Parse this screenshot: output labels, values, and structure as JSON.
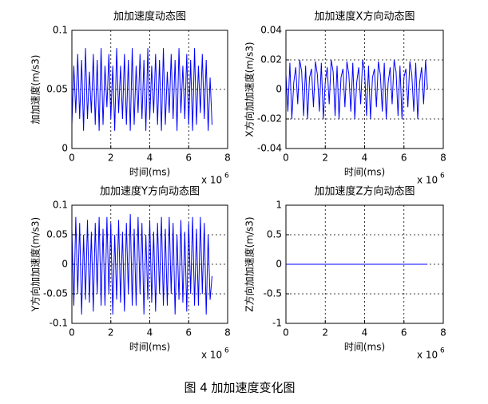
{
  "chart_data": [
    {
      "type": "line",
      "title": "加加速度动态图",
      "xlabel": "时间(ms)",
      "ylabel": "加加速度(m/s3)",
      "x_offset_text": "x 10",
      "x_offset_exponent": "6",
      "color": "#0000ff",
      "grid": true,
      "xlim": [
        0,
        8
      ],
      "xticks": [
        0,
        2,
        4,
        6,
        8
      ],
      "ylim": [
        0,
        0.1
      ],
      "yticks": [
        0,
        0.05,
        0.1
      ],
      "x": [
        0,
        0.1,
        0.2,
        0.3,
        0.4,
        0.5,
        0.6,
        0.7,
        0.8,
        0.9,
        1,
        1.1,
        1.2,
        1.3,
        1.4,
        1.5,
        1.6,
        1.7,
        1.8,
        1.9,
        2,
        2.1,
        2.2,
        2.3,
        2.4,
        2.5,
        2.6,
        2.7,
        2.8,
        2.9,
        3,
        3.1,
        3.2,
        3.3,
        3.4,
        3.5,
        3.6,
        3.7,
        3.8,
        3.9,
        4,
        4.1,
        4.2,
        4.3,
        4.4,
        4.5,
        4.6,
        4.7,
        4.8,
        4.9,
        5,
        5.1,
        5.2,
        5.3,
        5.4,
        5.5,
        5.6,
        5.7,
        5.8,
        5.9,
        6,
        6.1,
        6.2,
        6.3,
        6.4,
        6.5,
        6.6,
        6.7,
        6.8,
        6.9,
        7,
        7.1,
        7.2
      ],
      "values": [
        0.02,
        0.07,
        0.03,
        0.08,
        0.025,
        0.075,
        0.015,
        0.085,
        0.025,
        0.065,
        0.03,
        0.08,
        0.02,
        0.075,
        0.015,
        0.085,
        0.02,
        0.07,
        0.035,
        0.08,
        0.025,
        0.07,
        0.015,
        0.085,
        0.03,
        0.07,
        0.025,
        0.08,
        0.02,
        0.075,
        0.015,
        0.085,
        0.02,
        0.07,
        0.03,
        0.08,
        0.025,
        0.075,
        0.015,
        0.085,
        0.025,
        0.07,
        0.03,
        0.08,
        0.02,
        0.075,
        0.015,
        0.085,
        0.02,
        0.065,
        0.03,
        0.08,
        0.025,
        0.075,
        0.015,
        0.085,
        0.03,
        0.07,
        0.025,
        0.08,
        0.02,
        0.075,
        0.015,
        0.085,
        0.02,
        0.07,
        0.03,
        0.08,
        0.025,
        0.075,
        0.015,
        0.06,
        0.02
      ]
    },
    {
      "type": "line",
      "title": "加加速度X方向动态图",
      "xlabel": "时间(ms)",
      "ylabel": "X方向加加速度(m/s3)",
      "x_offset_text": "x 10",
      "x_offset_exponent": "6",
      "color": "#0000ff",
      "grid": true,
      "xlim": [
        0,
        8
      ],
      "xticks": [
        0,
        2,
        4,
        6,
        8
      ],
      "ylim": [
        -0.04,
        0.04
      ],
      "yticks": [
        -0.04,
        -0.02,
        0,
        0.02,
        0.04
      ],
      "x": [
        0,
        0.1,
        0.2,
        0.3,
        0.4,
        0.5,
        0.6,
        0.7,
        0.8,
        0.9,
        1,
        1.1,
        1.2,
        1.3,
        1.4,
        1.5,
        1.6,
        1.7,
        1.8,
        1.9,
        2,
        2.1,
        2.2,
        2.3,
        2.4,
        2.5,
        2.6,
        2.7,
        2.8,
        2.9,
        3,
        3.1,
        3.2,
        3.3,
        3.4,
        3.5,
        3.6,
        3.7,
        3.8,
        3.9,
        4,
        4.1,
        4.2,
        4.3,
        4.4,
        4.5,
        4.6,
        4.7,
        4.8,
        4.9,
        5,
        5.1,
        5.2,
        5.3,
        5.4,
        5.5,
        5.6,
        5.7,
        5.8,
        5.9,
        6,
        6.1,
        6.2,
        6.3,
        6.4,
        6.5,
        6.6,
        6.7,
        6.8,
        6.9,
        7,
        7.1,
        7.2
      ],
      "values": [
        0.01,
        -0.015,
        0.018,
        -0.02,
        0.005,
        0.015,
        -0.01,
        0.02,
        0.012,
        -0.018,
        0.016,
        -0.02,
        0.008,
        0.014,
        -0.012,
        0.019,
        0.01,
        -0.015,
        0.018,
        -0.02,
        0.005,
        0.015,
        -0.01,
        0.02,
        0.012,
        -0.018,
        0.016,
        -0.02,
        0.008,
        0.014,
        -0.012,
        0.019,
        0.01,
        -0.015,
        0.018,
        -0.02,
        0.005,
        0.015,
        -0.01,
        0.02,
        0.012,
        -0.018,
        0.016,
        -0.02,
        0.008,
        0.014,
        -0.012,
        0.019,
        0.01,
        -0.015,
        0.018,
        -0.02,
        0.005,
        0.015,
        -0.01,
        0.02,
        0.012,
        -0.018,
        0.016,
        -0.02,
        0.008,
        0.014,
        -0.012,
        0.019,
        0.01,
        -0.015,
        0.018,
        -0.02,
        0.005,
        0.015,
        -0.01,
        0.02,
        0
      ]
    },
    {
      "type": "line",
      "title": "加加速度Y方向动态图",
      "xlabel": "时间(ms)",
      "ylabel": "Y方向加加速度(m/s3)",
      "x_offset_text": "x 10",
      "x_offset_exponent": "6",
      "color": "#0000ff",
      "grid": true,
      "xlim": [
        0,
        8
      ],
      "xticks": [
        0,
        2,
        4,
        6,
        8
      ],
      "ylim": [
        -0.1,
        0.1
      ],
      "yticks": [
        -0.1,
        -0.05,
        0,
        0.05,
        0.1
      ],
      "x": [
        0,
        0.1,
        0.2,
        0.3,
        0.4,
        0.5,
        0.6,
        0.7,
        0.8,
        0.9,
        1,
        1.1,
        1.2,
        1.3,
        1.4,
        1.5,
        1.6,
        1.7,
        1.8,
        1.9,
        2,
        2.1,
        2.2,
        2.3,
        2.4,
        2.5,
        2.6,
        2.7,
        2.8,
        2.9,
        3,
        3.1,
        3.2,
        3.3,
        3.4,
        3.5,
        3.6,
        3.7,
        3.8,
        3.9,
        4,
        4.1,
        4.2,
        4.3,
        4.4,
        4.5,
        4.6,
        4.7,
        4.8,
        4.9,
        5,
        5.1,
        5.2,
        5.3,
        5.4,
        5.5,
        5.6,
        5.7,
        5.8,
        5.9,
        6,
        6.1,
        6.2,
        6.3,
        6.4,
        6.5,
        6.6,
        6.7,
        6.8,
        6.9,
        7,
        7.1,
        7.2
      ],
      "values": [
        0.06,
        -0.07,
        0.08,
        -0.05,
        0.07,
        -0.085,
        0.05,
        -0.06,
        0.075,
        -0.065,
        0.055,
        -0.08,
        0.07,
        -0.05,
        0.08,
        -0.07,
        0.06,
        -0.07,
        0.08,
        -0.05,
        0.07,
        -0.085,
        0.05,
        -0.06,
        0.075,
        -0.065,
        0.055,
        -0.08,
        0.07,
        -0.05,
        0.085,
        -0.07,
        0.06,
        -0.07,
        0.08,
        -0.05,
        0.07,
        -0.085,
        0.05,
        -0.06,
        0.075,
        -0.065,
        0.055,
        -0.08,
        0.07,
        -0.05,
        0.08,
        -0.07,
        0.06,
        -0.07,
        0.08,
        -0.05,
        0.07,
        -0.085,
        0.05,
        -0.06,
        0.075,
        -0.065,
        0.055,
        -0.08,
        0.07,
        -0.05,
        0.08,
        -0.07,
        0.06,
        -0.07,
        0.08,
        -0.05,
        0.07,
        -0.085,
        0.05,
        -0.06,
        -0.02
      ]
    },
    {
      "type": "line",
      "title": "加加速度Z方向动态图",
      "xlabel": "时间(ms)",
      "ylabel": "Z方向加加速度(m/s3)",
      "x_offset_text": "x 10",
      "x_offset_exponent": "6",
      "color": "#0000ff",
      "grid": true,
      "xlim": [
        0,
        8
      ],
      "xticks": [
        0,
        2,
        4,
        6,
        8
      ],
      "ylim": [
        -1,
        1
      ],
      "yticks": [
        -1,
        -0.5,
        0,
        0.5,
        1
      ],
      "x": [
        0,
        7.2
      ],
      "values": [
        0,
        0
      ]
    }
  ],
  "caption": "图 4  加加速度变化图"
}
